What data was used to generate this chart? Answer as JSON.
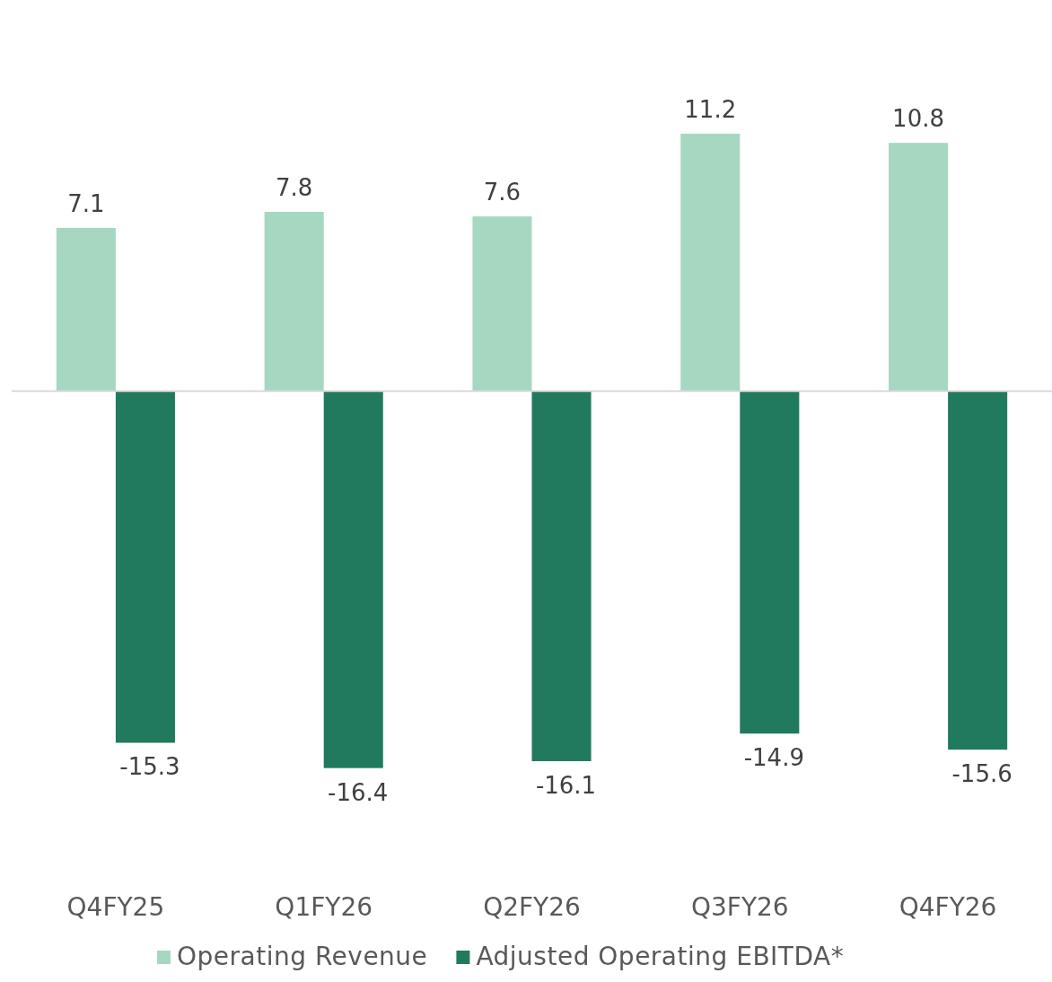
{
  "chart_data": {
    "type": "bar",
    "categories": [
      "Q4FY25",
      "Q1FY26",
      "Q2FY26",
      "Q3FY26",
      "Q4FY26"
    ],
    "series": [
      {
        "name": "Operating Revenue",
        "color": "#a6d7c1",
        "values": [
          7.1,
          7.8,
          7.6,
          11.2,
          10.8
        ]
      },
      {
        "name": "Adjusted Operating EBITDA*",
        "color": "#217a5e",
        "values": [
          -15.3,
          -16.4,
          -16.1,
          -14.9,
          -15.6
        ]
      }
    ],
    "data_labels": true,
    "legend": "bottom"
  }
}
